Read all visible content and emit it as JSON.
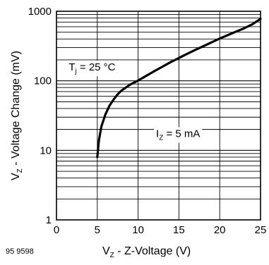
{
  "chart_data": {
    "type": "line",
    "xlabel": {
      "main": "V",
      "sub": "Z",
      "rest": " - Z-Voltage (V)"
    },
    "ylabel": {
      "main": "V",
      "sub": "Z",
      "rest": " - Voltage Change (mV)"
    },
    "xlim": [
      0,
      25
    ],
    "ylim": [
      1,
      1000
    ],
    "yscale": "log",
    "x_ticks": [
      "0",
      "5",
      "10",
      "15",
      "20",
      "25"
    ],
    "y_ticks": [
      "1",
      "10",
      "100",
      "1000"
    ],
    "grid": true,
    "series": [
      {
        "x": [
          5.0,
          5.2,
          5.5,
          6,
          6.5,
          7,
          7.5,
          8,
          9,
          10,
          11,
          12,
          13,
          14,
          15,
          16,
          17,
          18,
          19,
          20,
          21,
          22,
          23,
          24,
          25
        ],
        "y": [
          8,
          14,
          22,
          33,
          44,
          54,
          64,
          73,
          88,
          101,
          118,
          138,
          160,
          186,
          213,
          244,
          278,
          315,
          358,
          405,
          455,
          510,
          570,
          650,
          780
        ]
      }
    ],
    "annotations": [
      {
        "id": "tj",
        "main": "T",
        "sub": "j",
        "rest": " = 25 °C"
      },
      {
        "id": "iz",
        "main": "I",
        "sub": "Z",
        "rest": " = 5 mA"
      }
    ]
  },
  "figure_id": "95 9598"
}
